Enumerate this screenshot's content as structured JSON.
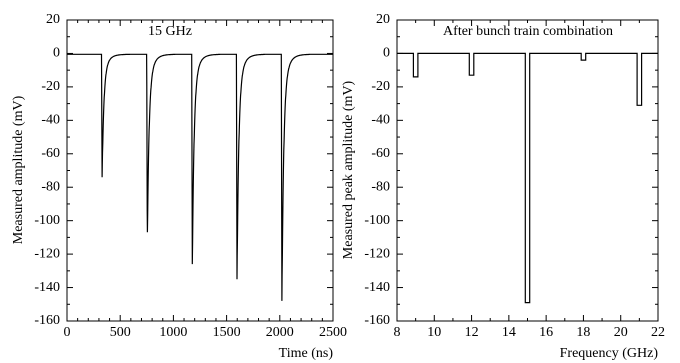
{
  "chart_data": [
    {
      "type": "line",
      "title": "15 GHz",
      "xlabel": "Time (ns)",
      "ylabel": "Measured amplitude (mV)",
      "xlim": [
        0,
        2500
      ],
      "ylim": [
        -160,
        20
      ],
      "xticks": [
        0,
        500,
        1000,
        1500,
        2000,
        2500
      ],
      "yticks": [
        20,
        0,
        -20,
        -40,
        -60,
        -80,
        -100,
        -120,
        -140,
        -160
      ],
      "baseline": -0.5,
      "pulses": [
        {
          "t": 330,
          "peak": -74
        },
        {
          "t": 755,
          "peak": -113
        },
        {
          "t": 1178,
          "peak": -126
        },
        {
          "t": 1598,
          "peak": -135
        },
        {
          "t": 2020,
          "peak": -148
        }
      ]
    },
    {
      "type": "bar",
      "title": "After bunch train combination",
      "xlabel": "Frequency (GHz)",
      "ylabel": "Measured peak amplitude (mV)",
      "xlim": [
        8,
        22
      ],
      "ylim": [
        -160,
        20
      ],
      "xticks": [
        8,
        9,
        10,
        11,
        12,
        13,
        14,
        15,
        16,
        17,
        18,
        19,
        20,
        21,
        22
      ],
      "xtick_labels": [
        8,
        10,
        12,
        14,
        16,
        18,
        20,
        22
      ],
      "yticks": [
        20,
        0,
        -20,
        -40,
        -60,
        -80,
        -100,
        -120,
        -140,
        -160
      ],
      "x": [
        9,
        12,
        15,
        18,
        21
      ],
      "values": [
        -14,
        -13,
        -149,
        -4,
        -31
      ]
    }
  ]
}
